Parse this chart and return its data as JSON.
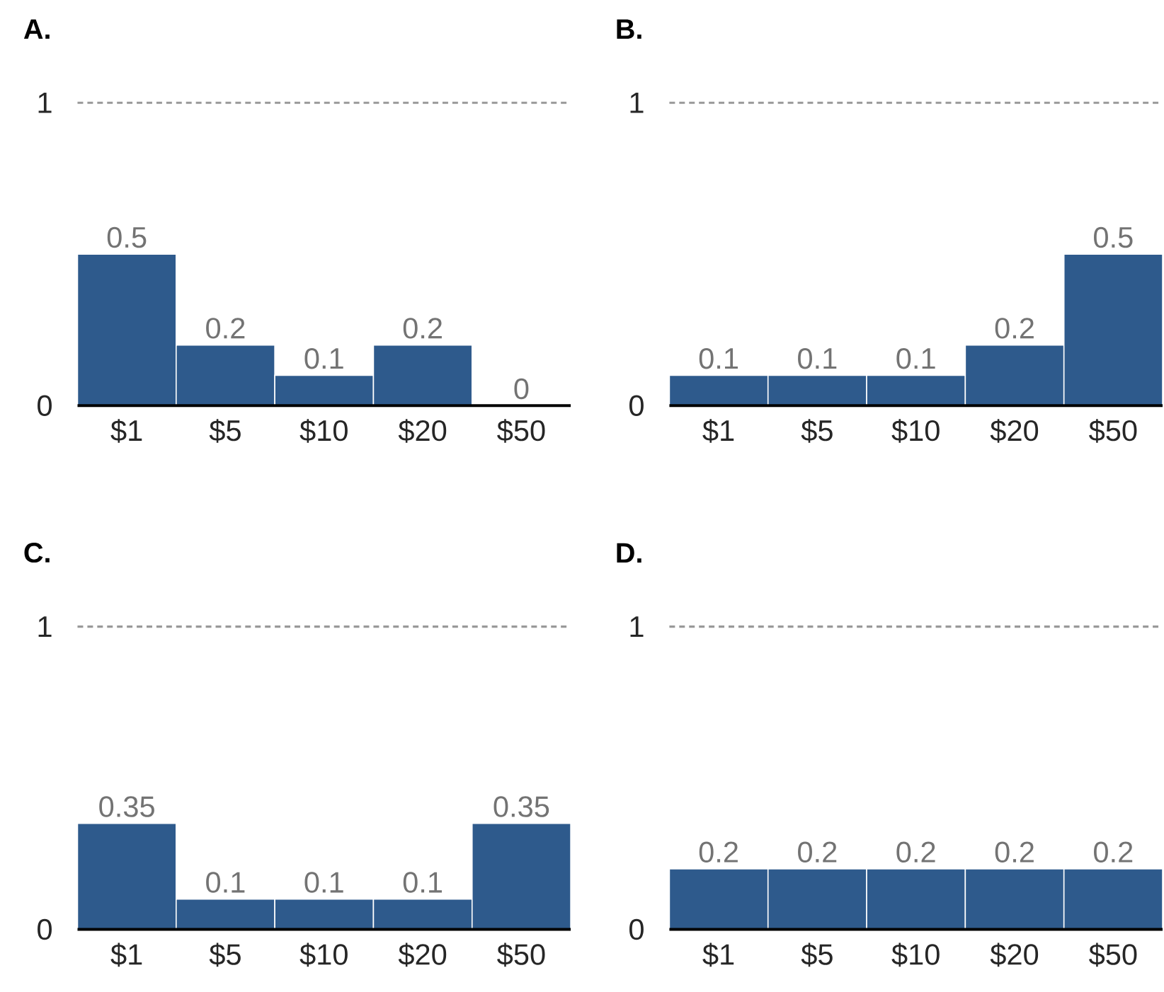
{
  "chart_data": [
    {
      "type": "bar",
      "title": "A.",
      "categories": [
        "$1",
        "$5",
        "$10",
        "$20",
        "$50"
      ],
      "values": [
        0.5,
        0.2,
        0.1,
        0.2,
        0
      ],
      "color": "#2e5a8c",
      "ylim": [
        0,
        1
      ],
      "yticks": [
        0,
        1
      ],
      "data_labels": true,
      "ref_lines": [
        {
          "axis": "y",
          "value": 1,
          "color": "#999999",
          "line_style": "dashed"
        }
      ]
    },
    {
      "type": "bar",
      "title": "B.",
      "categories": [
        "$1",
        "$5",
        "$10",
        "$20",
        "$50"
      ],
      "values": [
        0.1,
        0.1,
        0.1,
        0.2,
        0.5
      ],
      "color": "#2e5a8c",
      "ylim": [
        0,
        1
      ],
      "yticks": [
        0,
        1
      ],
      "data_labels": true,
      "ref_lines": [
        {
          "axis": "y",
          "value": 1,
          "color": "#999999",
          "line_style": "dashed"
        }
      ]
    },
    {
      "type": "bar",
      "title": "C.",
      "categories": [
        "$1",
        "$5",
        "$10",
        "$20",
        "$50"
      ],
      "values": [
        0.35,
        0.1,
        0.1,
        0.1,
        0.35
      ],
      "color": "#2e5a8c",
      "ylim": [
        0,
        1
      ],
      "yticks": [
        0,
        1
      ],
      "data_labels": true,
      "ref_lines": [
        {
          "axis": "y",
          "value": 1,
          "color": "#999999",
          "line_style": "dashed"
        }
      ]
    },
    {
      "type": "bar",
      "title": "D.",
      "categories": [
        "$1",
        "$5",
        "$10",
        "$20",
        "$50"
      ],
      "values": [
        0.2,
        0.2,
        0.2,
        0.2,
        0.2
      ],
      "color": "#2e5a8c",
      "ylim": [
        0,
        1
      ],
      "yticks": [
        0,
        1
      ],
      "data_labels": true,
      "ref_lines": [
        {
          "axis": "y",
          "value": 1,
          "color": "#999999",
          "line_style": "dashed"
        }
      ]
    }
  ]
}
